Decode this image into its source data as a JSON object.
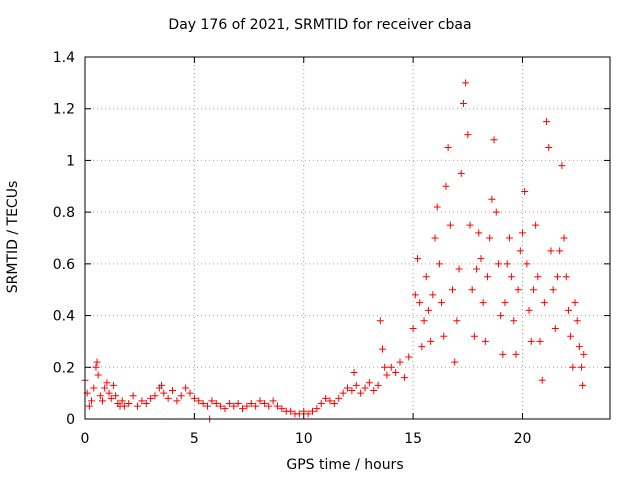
{
  "chart_data": {
    "type": "scatter",
    "title": "Day 176 of 2021, SRMTID for receiver cbaa",
    "xlabel": "GPS time / hours",
    "ylabel": "SRMTID / TECUs",
    "xlim": [
      0,
      24
    ],
    "ylim": [
      0,
      1.4
    ],
    "xticks": [
      "0",
      "5",
      "10",
      "15",
      "20"
    ],
    "xtick_values": [
      0,
      5,
      10,
      15,
      20
    ],
    "yticks": [
      "0",
      "0.2",
      "0.4",
      "0.6",
      "0.8",
      "1",
      "1.2",
      "1.4"
    ],
    "ytick_values": [
      0,
      0.2,
      0.4,
      0.6,
      0.8,
      1.0,
      1.2,
      1.4
    ],
    "grid": true,
    "marker": "+",
    "color": "#ff0000",
    "series": [
      {
        "name": "SRMTID",
        "points": [
          [
            0.0,
            0.15
          ],
          [
            0.1,
            0.1
          ],
          [
            0.2,
            0.05
          ],
          [
            0.3,
            0.07
          ],
          [
            0.4,
            0.12
          ],
          [
            0.5,
            0.2
          ],
          [
            0.55,
            0.22
          ],
          [
            0.6,
            0.17
          ],
          [
            0.7,
            0.09
          ],
          [
            0.8,
            0.07
          ],
          [
            0.9,
            0.12
          ],
          [
            1.0,
            0.14
          ],
          [
            1.1,
            0.1
          ],
          [
            1.2,
            0.08
          ],
          [
            1.3,
            0.13
          ],
          [
            1.4,
            0.09
          ],
          [
            1.5,
            0.06
          ],
          [
            1.6,
            0.05
          ],
          [
            1.7,
            0.07
          ],
          [
            1.8,
            0.05
          ],
          [
            2.0,
            0.06
          ],
          [
            2.2,
            0.09
          ],
          [
            2.4,
            0.05
          ],
          [
            2.6,
            0.07
          ],
          [
            2.8,
            0.06
          ],
          [
            3.0,
            0.08
          ],
          [
            3.2,
            0.09
          ],
          [
            3.4,
            0.12
          ],
          [
            3.5,
            0.13
          ],
          [
            3.6,
            0.1
          ],
          [
            3.8,
            0.08
          ],
          [
            4.0,
            0.11
          ],
          [
            4.2,
            0.07
          ],
          [
            4.4,
            0.09
          ],
          [
            4.6,
            0.12
          ],
          [
            4.8,
            0.1
          ],
          [
            5.0,
            0.08
          ],
          [
            5.2,
            0.07
          ],
          [
            5.4,
            0.06
          ],
          [
            5.6,
            0.05
          ],
          [
            5.7,
            0.0
          ],
          [
            5.8,
            0.07
          ],
          [
            6.0,
            0.06
          ],
          [
            6.2,
            0.05
          ],
          [
            6.4,
            0.04
          ],
          [
            6.6,
            0.06
          ],
          [
            6.8,
            0.05
          ],
          [
            7.0,
            0.06
          ],
          [
            7.2,
            0.04
          ],
          [
            7.4,
            0.05
          ],
          [
            7.6,
            0.06
          ],
          [
            7.8,
            0.05
          ],
          [
            8.0,
            0.07
          ],
          [
            8.2,
            0.06
          ],
          [
            8.4,
            0.05
          ],
          [
            8.6,
            0.07
          ],
          [
            8.8,
            0.05
          ],
          [
            9.0,
            0.04
          ],
          [
            9.2,
            0.03
          ],
          [
            9.4,
            0.03
          ],
          [
            9.6,
            0.02
          ],
          [
            9.8,
            0.02
          ],
          [
            10.0,
            0.03
          ],
          [
            10.2,
            0.02
          ],
          [
            10.4,
            0.03
          ],
          [
            10.6,
            0.04
          ],
          [
            10.8,
            0.06
          ],
          [
            11.0,
            0.08
          ],
          [
            11.2,
            0.07
          ],
          [
            11.4,
            0.06
          ],
          [
            11.6,
            0.08
          ],
          [
            11.8,
            0.1
          ],
          [
            12.0,
            0.12
          ],
          [
            12.2,
            0.11
          ],
          [
            12.3,
            0.18
          ],
          [
            12.4,
            0.13
          ],
          [
            12.6,
            0.1
          ],
          [
            12.8,
            0.12
          ],
          [
            13.0,
            0.14
          ],
          [
            13.2,
            0.11
          ],
          [
            13.4,
            0.13
          ],
          [
            13.5,
            0.38
          ],
          [
            13.6,
            0.27
          ],
          [
            13.7,
            0.2
          ],
          [
            13.8,
            0.17
          ],
          [
            14.0,
            0.2
          ],
          [
            14.2,
            0.18
          ],
          [
            14.4,
            0.22
          ],
          [
            14.6,
            0.16
          ],
          [
            14.8,
            0.24
          ],
          [
            15.0,
            0.35
          ],
          [
            15.1,
            0.48
          ],
          [
            15.2,
            0.62
          ],
          [
            15.3,
            0.45
          ],
          [
            15.4,
            0.28
          ],
          [
            15.5,
            0.38
          ],
          [
            15.6,
            0.55
          ],
          [
            15.7,
            0.42
          ],
          [
            15.8,
            0.3
          ],
          [
            15.9,
            0.48
          ],
          [
            16.0,
            0.7
          ],
          [
            16.1,
            0.82
          ],
          [
            16.2,
            0.6
          ],
          [
            16.3,
            0.45
          ],
          [
            16.4,
            0.32
          ],
          [
            16.5,
            0.9
          ],
          [
            16.6,
            1.05
          ],
          [
            16.7,
            0.75
          ],
          [
            16.8,
            0.5
          ],
          [
            16.9,
            0.22
          ],
          [
            17.0,
            0.38
          ],
          [
            17.1,
            0.58
          ],
          [
            17.2,
            0.95
          ],
          [
            17.3,
            1.22
          ],
          [
            17.4,
            1.3
          ],
          [
            17.5,
            1.1
          ],
          [
            17.6,
            0.75
          ],
          [
            17.7,
            0.5
          ],
          [
            17.8,
            0.32
          ],
          [
            17.9,
            0.58
          ],
          [
            18.0,
            0.72
          ],
          [
            18.1,
            0.62
          ],
          [
            18.2,
            0.45
          ],
          [
            18.3,
            0.3
          ],
          [
            18.4,
            0.55
          ],
          [
            18.5,
            0.7
          ],
          [
            18.6,
            0.85
          ],
          [
            18.7,
            1.08
          ],
          [
            18.8,
            0.8
          ],
          [
            18.9,
            0.6
          ],
          [
            19.0,
            0.4
          ],
          [
            19.1,
            0.25
          ],
          [
            19.2,
            0.45
          ],
          [
            19.3,
            0.6
          ],
          [
            19.4,
            0.7
          ],
          [
            19.5,
            0.55
          ],
          [
            19.6,
            0.38
          ],
          [
            19.7,
            0.25
          ],
          [
            19.8,
            0.5
          ],
          [
            19.9,
            0.65
          ],
          [
            20.0,
            0.72
          ],
          [
            20.1,
            0.88
          ],
          [
            20.2,
            0.6
          ],
          [
            20.3,
            0.42
          ],
          [
            20.4,
            0.3
          ],
          [
            20.5,
            0.5
          ],
          [
            20.6,
            0.75
          ],
          [
            20.7,
            0.55
          ],
          [
            20.8,
            0.3
          ],
          [
            20.9,
            0.15
          ],
          [
            21.0,
            0.45
          ],
          [
            21.1,
            1.15
          ],
          [
            21.2,
            1.05
          ],
          [
            21.3,
            0.65
          ],
          [
            21.4,
            0.5
          ],
          [
            21.5,
            0.35
          ],
          [
            21.6,
            0.55
          ],
          [
            21.7,
            0.65
          ],
          [
            21.8,
            0.98
          ],
          [
            21.9,
            0.7
          ],
          [
            22.0,
            0.55
          ],
          [
            22.1,
            0.42
          ],
          [
            22.2,
            0.32
          ],
          [
            22.3,
            0.2
          ],
          [
            22.4,
            0.45
          ],
          [
            22.5,
            0.38
          ],
          [
            22.6,
            0.28
          ],
          [
            22.7,
            0.2
          ],
          [
            22.75,
            0.13
          ],
          [
            22.8,
            0.25
          ]
        ]
      }
    ]
  }
}
